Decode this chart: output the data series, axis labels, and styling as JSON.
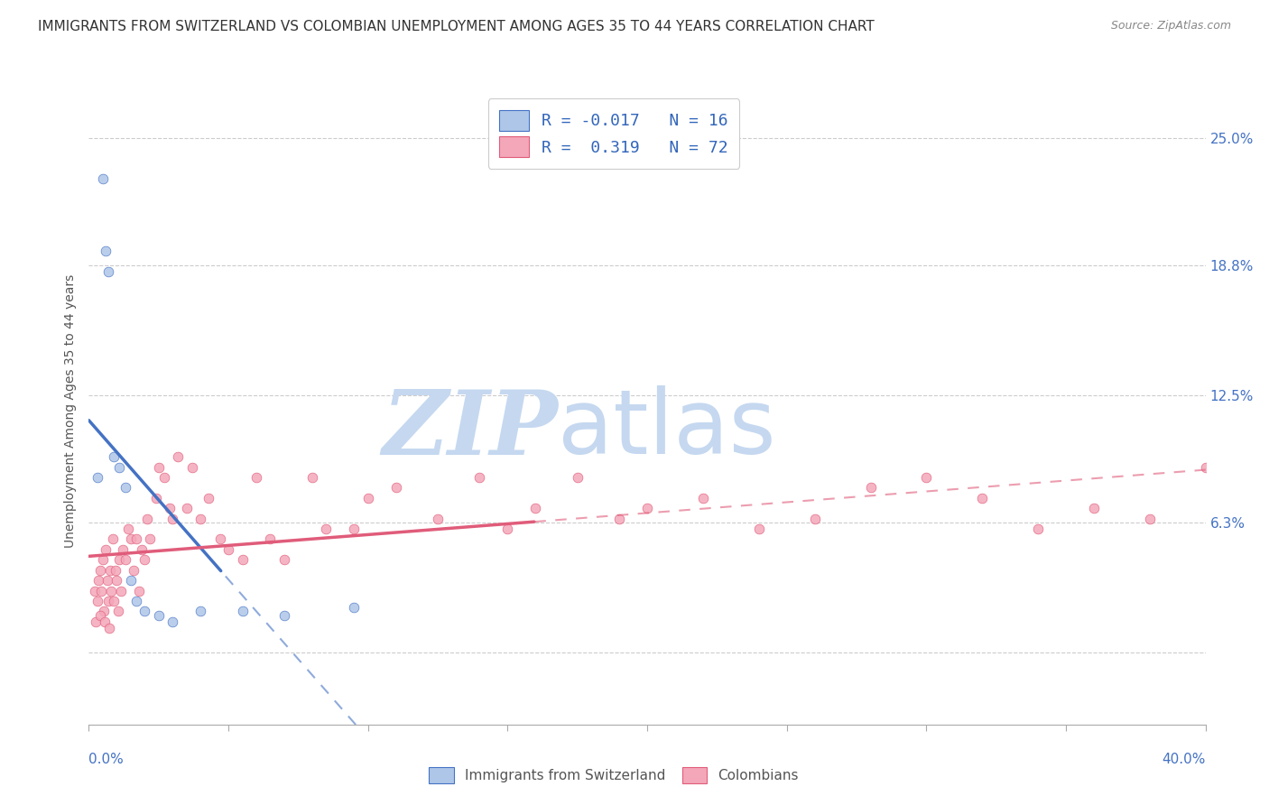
{
  "title": "IMMIGRANTS FROM SWITZERLAND VS COLOMBIAN UNEMPLOYMENT AMONG AGES 35 TO 44 YEARS CORRELATION CHART",
  "source": "Source: ZipAtlas.com",
  "ylabel": "Unemployment Among Ages 35 to 44 years",
  "y_ticks": [
    0.0,
    6.3,
    12.5,
    18.8,
    25.0
  ],
  "y_tick_labels": [
    "",
    "6.3%",
    "12.5%",
    "18.8%",
    "25.0%"
  ],
  "xlim": [
    0.0,
    40.0
  ],
  "ylim": [
    -3.5,
    27.0
  ],
  "background_color": "#ffffff",
  "grid_color": "#cccccc",
  "swiss_color": "#aec6e8",
  "colombian_color": "#f4a7b9",
  "swiss_line_color": "#4472c4",
  "colombian_line_color": "#e05c7a",
  "swiss_R": -0.017,
  "swiss_N": 16,
  "colombian_R": 0.319,
  "colombian_N": 72,
  "legend_label_swiss": "Immigrants from Switzerland",
  "legend_label_colombian": "Colombians",
  "legend_text_color": "#3366bb",
  "swiss_scatter_x": [
    0.3,
    0.5,
    0.6,
    0.7,
    0.9,
    1.1,
    1.3,
    1.5,
    1.7,
    2.0,
    2.5,
    3.0,
    4.0,
    5.5,
    7.0,
    9.5
  ],
  "swiss_scatter_y": [
    8.5,
    23.0,
    19.5,
    18.5,
    9.5,
    9.0,
    8.0,
    3.5,
    2.5,
    2.0,
    1.8,
    1.5,
    2.0,
    2.0,
    1.8,
    2.2
  ],
  "colombian_scatter_x": [
    0.2,
    0.3,
    0.35,
    0.4,
    0.45,
    0.5,
    0.55,
    0.6,
    0.65,
    0.7,
    0.75,
    0.8,
    0.85,
    0.9,
    0.95,
    1.0,
    1.05,
    1.1,
    1.15,
    1.2,
    1.3,
    1.4,
    1.5,
    1.6,
    1.7,
    1.8,
    1.9,
    2.0,
    2.1,
    2.2,
    2.4,
    2.5,
    2.7,
    2.9,
    3.0,
    3.2,
    3.5,
    3.7,
    4.0,
    4.3,
    4.7,
    5.0,
    5.5,
    6.0,
    6.5,
    7.0,
    8.0,
    8.5,
    9.5,
    10.0,
    11.0,
    12.5,
    14.0,
    15.0,
    16.0,
    17.5,
    19.0,
    20.0,
    22.0,
    24.0,
    26.0,
    28.0,
    30.0,
    32.0,
    34.0,
    36.0,
    38.0,
    40.0,
    0.25,
    0.42,
    0.58,
    0.72
  ],
  "colombian_scatter_y": [
    3.0,
    2.5,
    3.5,
    4.0,
    3.0,
    4.5,
    2.0,
    5.0,
    3.5,
    2.5,
    4.0,
    3.0,
    5.5,
    2.5,
    4.0,
    3.5,
    2.0,
    4.5,
    3.0,
    5.0,
    4.5,
    6.0,
    5.5,
    4.0,
    5.5,
    3.0,
    5.0,
    4.5,
    6.5,
    5.5,
    7.5,
    9.0,
    8.5,
    7.0,
    6.5,
    9.5,
    7.0,
    9.0,
    6.5,
    7.5,
    5.5,
    5.0,
    4.5,
    8.5,
    5.5,
    4.5,
    8.5,
    6.0,
    6.0,
    7.5,
    8.0,
    6.5,
    8.5,
    6.0,
    7.0,
    8.5,
    6.5,
    7.0,
    7.5,
    6.0,
    6.5,
    8.0,
    8.5,
    7.5,
    6.0,
    7.0,
    6.5,
    9.0,
    1.5,
    1.8,
    1.5,
    1.2
  ],
  "watermark_zip": "ZIP",
  "watermark_atlas": "atlas",
  "watermark_color_zip": "#c5d8f0",
  "watermark_color_atlas": "#c5d8f0",
  "title_fontsize": 11,
  "axis_label_fontsize": 10,
  "tick_fontsize": 11,
  "scatter_size": 60
}
